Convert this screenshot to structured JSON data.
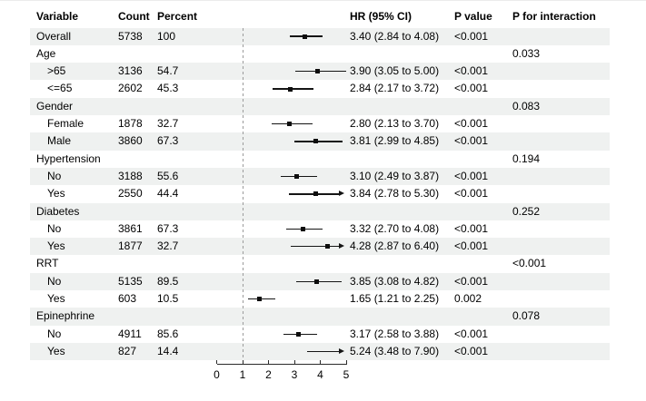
{
  "columns": {
    "variable": "Variable",
    "count": "Count",
    "percent": "Percent",
    "hr": "HR (95% CI)",
    "p": "P value",
    "p_interaction": "P for interaction"
  },
  "colors": {
    "row_shade": "#eff1f0",
    "ci_line": "#151515",
    "marker": "#0d0d0d",
    "axis": "#2b2b2b",
    "reference_line": "#9b9b9b",
    "text": "#000000"
  },
  "chart_data": {
    "type": "scatter",
    "subtype": "forest-plot",
    "title": "",
    "xlabel": "",
    "ylabel": "",
    "legend_position": "none",
    "grid": false,
    "axis": {
      "min": 0,
      "max": 5,
      "ticks": [
        "0",
        "1",
        "2",
        "3",
        "4",
        "5"
      ],
      "reference_line": 1
    },
    "rows": [
      {
        "label": "Overall",
        "indent": 0,
        "count": "5738",
        "percent": "100",
        "hr": 3.4,
        "lo": 2.84,
        "hi": 4.08,
        "hr_text": "3.40 (2.84 to 4.08)",
        "p": "<0.001",
        "p_int": "",
        "shaded": true
      },
      {
        "label": "Age",
        "indent": 0,
        "count": "",
        "percent": "",
        "hr": null,
        "lo": null,
        "hi": null,
        "hr_text": "",
        "p": "",
        "p_int": "0.033",
        "shaded": false
      },
      {
        "label": ">65",
        "indent": 1,
        "count": "3136",
        "percent": "54.7",
        "hr": 3.9,
        "lo": 3.05,
        "hi": 5.0,
        "hr_text": "3.90 (3.05 to 5.00)",
        "p": "<0.001",
        "p_int": "",
        "shaded": true
      },
      {
        "label": "<=65",
        "indent": 1,
        "count": "2602",
        "percent": "45.3",
        "hr": 2.84,
        "lo": 2.17,
        "hi": 3.72,
        "hr_text": "2.84 (2.17 to 3.72)",
        "p": "<0.001",
        "p_int": "",
        "shaded": false
      },
      {
        "label": "Gender",
        "indent": 0,
        "count": "",
        "percent": "",
        "hr": null,
        "lo": null,
        "hi": null,
        "hr_text": "",
        "p": "",
        "p_int": "0.083",
        "shaded": true
      },
      {
        "label": "Female",
        "indent": 1,
        "count": "1878",
        "percent": "32.7",
        "hr": 2.8,
        "lo": 2.13,
        "hi": 3.7,
        "hr_text": "2.80 (2.13 to 3.70)",
        "p": "<0.001",
        "p_int": "",
        "shaded": false
      },
      {
        "label": "Male",
        "indent": 1,
        "count": "3860",
        "percent": "67.3",
        "hr": 3.81,
        "lo": 2.99,
        "hi": 4.85,
        "hr_text": "3.81 (2.99 to 4.85)",
        "p": "<0.001",
        "p_int": "",
        "shaded": true
      },
      {
        "label": "Hypertension",
        "indent": 0,
        "count": "",
        "percent": "",
        "hr": null,
        "lo": null,
        "hi": null,
        "hr_text": "",
        "p": "",
        "p_int": "0.194",
        "shaded": false
      },
      {
        "label": "No",
        "indent": 1,
        "count": "3188",
        "percent": "55.6",
        "hr": 3.1,
        "lo": 2.49,
        "hi": 3.87,
        "hr_text": "3.10 (2.49 to 3.87)",
        "p": "<0.001",
        "p_int": "",
        "shaded": true
      },
      {
        "label": "Yes",
        "indent": 1,
        "count": "2550",
        "percent": "44.4",
        "hr": 3.84,
        "lo": 2.78,
        "hi": 5.3,
        "hr_text": "3.84 (2.78 to 5.30)",
        "p": "<0.001",
        "p_int": "",
        "shaded": false
      },
      {
        "label": "Diabetes",
        "indent": 0,
        "count": "",
        "percent": "",
        "hr": null,
        "lo": null,
        "hi": null,
        "hr_text": "",
        "p": "",
        "p_int": "0.252",
        "shaded": true
      },
      {
        "label": "No",
        "indent": 1,
        "count": "3861",
        "percent": "67.3",
        "hr": 3.32,
        "lo": 2.7,
        "hi": 4.08,
        "hr_text": "3.32 (2.70 to 4.08)",
        "p": "<0.001",
        "p_int": "",
        "shaded": false
      },
      {
        "label": "Yes",
        "indent": 1,
        "count": "1877",
        "percent": "32.7",
        "hr": 4.28,
        "lo": 2.87,
        "hi": 6.4,
        "hr_text": "4.28 (2.87 to 6.40)",
        "p": "<0.001",
        "p_int": "",
        "shaded": true
      },
      {
        "label": "RRT",
        "indent": 0,
        "count": "",
        "percent": "",
        "hr": null,
        "lo": null,
        "hi": null,
        "hr_text": "",
        "p": "",
        "p_int": "<0.001",
        "shaded": false
      },
      {
        "label": "No",
        "indent": 1,
        "count": "5135",
        "percent": "89.5",
        "hr": 3.85,
        "lo": 3.08,
        "hi": 4.82,
        "hr_text": "3.85 (3.08 to 4.82)",
        "p": "<0.001",
        "p_int": "",
        "shaded": true
      },
      {
        "label": "Yes",
        "indent": 1,
        "count": "603",
        "percent": "10.5",
        "hr": 1.65,
        "lo": 1.21,
        "hi": 2.25,
        "hr_text": "1.65 (1.21 to 2.25)",
        "p": "0.002",
        "p_int": "",
        "shaded": false
      },
      {
        "label": "Epinephrine",
        "indent": 0,
        "count": "",
        "percent": "",
        "hr": null,
        "lo": null,
        "hi": null,
        "hr_text": "",
        "p": "",
        "p_int": "0.078",
        "shaded": true
      },
      {
        "label": "No",
        "indent": 1,
        "count": "4911",
        "percent": "85.6",
        "hr": 3.17,
        "lo": 2.58,
        "hi": 3.88,
        "hr_text": "3.17 (2.58 to 3.88)",
        "p": "<0.001",
        "p_int": "",
        "shaded": false
      },
      {
        "label": "Yes",
        "indent": 1,
        "count": "827",
        "percent": "14.4",
        "hr": 5.24,
        "lo": 3.48,
        "hi": 7.9,
        "hr_text": "5.24 (3.48 to 7.90)",
        "p": "<0.001",
        "p_int": "",
        "shaded": true
      }
    ]
  }
}
